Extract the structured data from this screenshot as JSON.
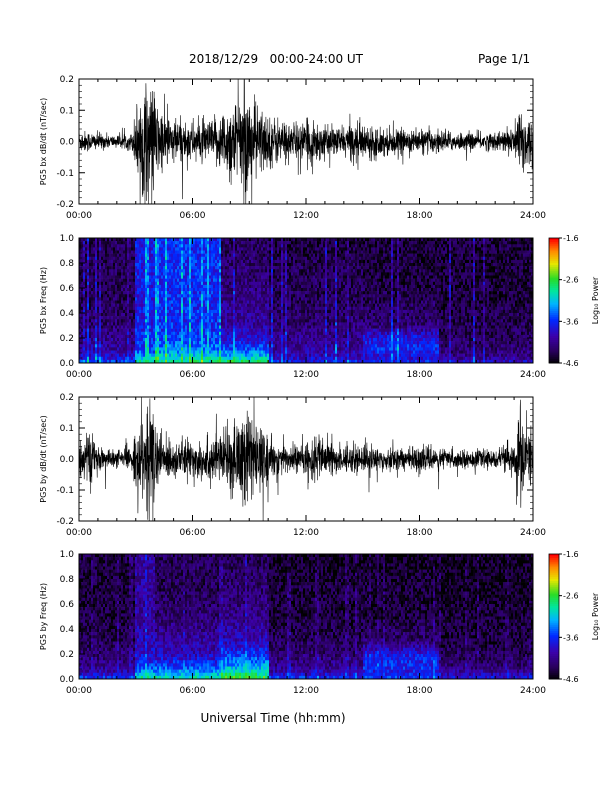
{
  "header": {
    "title": "2018/12/29   00:00-24:00 UT",
    "page": "Page 1/1"
  },
  "footer": {
    "xlabel": "Universal Time (hh:mm)"
  },
  "chart_data": [
    {
      "type": "line",
      "ylabel": "PG5 bx dB/dt (nT/sec)",
      "x_ticks": [
        "00:00",
        "06:00",
        "12:00",
        "18:00",
        "24:00"
      ],
      "y_ticks": [
        "0.2",
        "0.1",
        "0.0",
        "-0.1",
        "-0.2"
      ],
      "ylim": [
        -0.2,
        0.2
      ],
      "xlim": [
        0,
        24
      ],
      "envelope": {
        "x_hours": [
          0,
          1,
          2,
          2.8,
          3.1,
          3.3,
          3.6,
          3.9,
          4.2,
          5,
          6,
          7,
          7.5,
          8,
          8.5,
          8.8,
          9.2,
          10,
          11,
          12,
          12.3,
          13,
          14,
          14.6,
          15,
          16,
          17,
          18,
          19,
          20,
          21,
          22,
          23,
          23.3,
          24
        ],
        "amplitude": [
          0.04,
          0.03,
          0.02,
          0.03,
          0.15,
          0.2,
          0.2,
          0.2,
          0.12,
          0.08,
          0.07,
          0.07,
          0.1,
          0.14,
          0.15,
          0.19,
          0.15,
          0.09,
          0.07,
          0.06,
          0.09,
          0.05,
          0.05,
          0.07,
          0.06,
          0.05,
          0.04,
          0.04,
          0.04,
          0.03,
          0.03,
          0.03,
          0.05,
          0.13,
          0.08
        ]
      }
    },
    {
      "type": "heatmap",
      "ylabel": "PG5 bx Freq (Hz)",
      "x_ticks": [
        "00:00",
        "06:00",
        "12:00",
        "18:00",
        "24:00"
      ],
      "y_ticks": [
        "1.0",
        "0.8",
        "0.6",
        "0.4",
        "0.2",
        "0.0"
      ],
      "ylim": [
        0,
        1.0
      ],
      "xlim": [
        0,
        24
      ],
      "colorbar": {
        "label": "Log₁₀ Power",
        "ticks": [
          "-1.6",
          "-2.6",
          "-3.6",
          "-4.6"
        ],
        "range": [
          -4.6,
          -1.6
        ]
      },
      "log10_power": {
        "frequency_hz": [
          0.0,
          0.05,
          0.1,
          0.2,
          0.3,
          0.5,
          0.7,
          1.0
        ],
        "hour_ranges": [
          {
            "hours": [
              0,
              3
            ],
            "values": [
              -3.4,
              -3.8,
              -4.0,
              -4.1,
              -4.2,
              -4.3,
              -4.3,
              -4.3
            ]
          },
          {
            "hours": [
              3,
              4
            ],
            "values": [
              -2.8,
              -3.2,
              -3.5,
              -3.6,
              -3.7,
              -3.7,
              -3.7,
              -3.7
            ]
          },
          {
            "hours": [
              4,
              7.5
            ],
            "values": [
              -2.8,
              -3.0,
              -3.3,
              -3.5,
              -3.6,
              -3.6,
              -3.6,
              -3.6
            ]
          },
          {
            "hours": [
              7.5,
              10
            ],
            "values": [
              -2.6,
              -3.1,
              -3.4,
              -3.8,
              -4.0,
              -4.1,
              -4.2,
              -4.3
            ]
          },
          {
            "hours": [
              10,
              15
            ],
            "values": [
              -3.6,
              -3.9,
              -4.0,
              -4.1,
              -4.2,
              -4.3,
              -4.3,
              -4.4
            ]
          },
          {
            "hours": [
              15,
              19
            ],
            "values": [
              -3.6,
              -3.8,
              -3.6,
              -3.7,
              -4.2,
              -4.3,
              -4.4,
              -4.4
            ]
          },
          {
            "hours": [
              19,
              24
            ],
            "values": [
              -3.8,
              -4.1,
              -4.2,
              -4.3,
              -4.3,
              -4.4,
              -4.4,
              -4.4
            ]
          }
        ]
      }
    },
    {
      "type": "line",
      "ylabel": "PG5 by dB/dt (nT/sec)",
      "x_ticks": [
        "00:00",
        "06:00",
        "12:00",
        "18:00",
        "24:00"
      ],
      "y_ticks": [
        "0.2",
        "0.1",
        "0.0",
        "-0.1",
        "-0.2"
      ],
      "ylim": [
        -0.2,
        0.2
      ],
      "xlim": [
        0,
        24
      ],
      "envelope": {
        "x_hours": [
          0,
          0.5,
          1,
          2,
          2.8,
          3.1,
          3.4,
          3.8,
          4.2,
          5,
          6,
          7,
          8,
          8.5,
          8.8,
          9.2,
          10,
          11,
          12,
          12.3,
          13,
          14,
          15,
          16,
          17,
          18,
          19,
          20,
          21,
          22,
          23,
          23.3,
          24
        ],
        "amplitude": [
          0.06,
          0.1,
          0.04,
          0.03,
          0.04,
          0.12,
          0.15,
          0.2,
          0.1,
          0.06,
          0.07,
          0.08,
          0.1,
          0.16,
          0.2,
          0.14,
          0.07,
          0.05,
          0.05,
          0.09,
          0.06,
          0.05,
          0.05,
          0.04,
          0.04,
          0.04,
          0.04,
          0.03,
          0.03,
          0.03,
          0.06,
          0.18,
          0.1
        ]
      }
    },
    {
      "type": "heatmap",
      "ylabel": "PG5 by Freq (Hz)",
      "x_ticks": [
        "00:00",
        "06:00",
        "12:00",
        "18:00",
        "24:00"
      ],
      "y_ticks": [
        "1.0",
        "0.8",
        "0.6",
        "0.4",
        "0.2",
        "0.0"
      ],
      "ylim": [
        0,
        1.0
      ],
      "xlim": [
        0,
        24
      ],
      "colorbar": {
        "label": "Log₁₀ Power",
        "ticks": [
          "-1.6",
          "-2.6",
          "-3.6",
          "-4.6"
        ],
        "range": [
          -4.6,
          -1.6
        ]
      },
      "log10_power": {
        "frequency_hz": [
          0.0,
          0.05,
          0.1,
          0.2,
          0.3,
          0.5,
          0.7,
          1.0
        ],
        "hour_ranges": [
          {
            "hours": [
              0,
              3
            ],
            "values": [
              -3.5,
              -3.9,
              -4.1,
              -4.2,
              -4.3,
              -4.4,
              -4.4,
              -4.4
            ]
          },
          {
            "hours": [
              3,
              4
            ],
            "values": [
              -2.8,
              -3.2,
              -3.5,
              -3.8,
              -3.9,
              -4.0,
              -4.0,
              -4.0
            ]
          },
          {
            "hours": [
              4,
              7.5
            ],
            "values": [
              -2.9,
              -3.2,
              -3.5,
              -3.9,
              -4.0,
              -4.2,
              -4.3,
              -4.3
            ]
          },
          {
            "hours": [
              7.5,
              10
            ],
            "values": [
              -2.5,
              -2.9,
              -3.2,
              -3.6,
              -3.9,
              -4.1,
              -4.2,
              -4.3
            ]
          },
          {
            "hours": [
              10,
              15
            ],
            "values": [
              -3.5,
              -3.9,
              -4.1,
              -4.2,
              -4.3,
              -4.4,
              -4.4,
              -4.5
            ]
          },
          {
            "hours": [
              15,
              19
            ],
            "values": [
              -3.5,
              -3.7,
              -3.6,
              -3.7,
              -4.2,
              -4.4,
              -4.4,
              -4.5
            ]
          },
          {
            "hours": [
              19,
              24
            ],
            "values": [
              -3.7,
              -4.0,
              -4.2,
              -4.3,
              -4.4,
              -4.4,
              -4.5,
              -4.5
            ]
          }
        ]
      }
    }
  ]
}
